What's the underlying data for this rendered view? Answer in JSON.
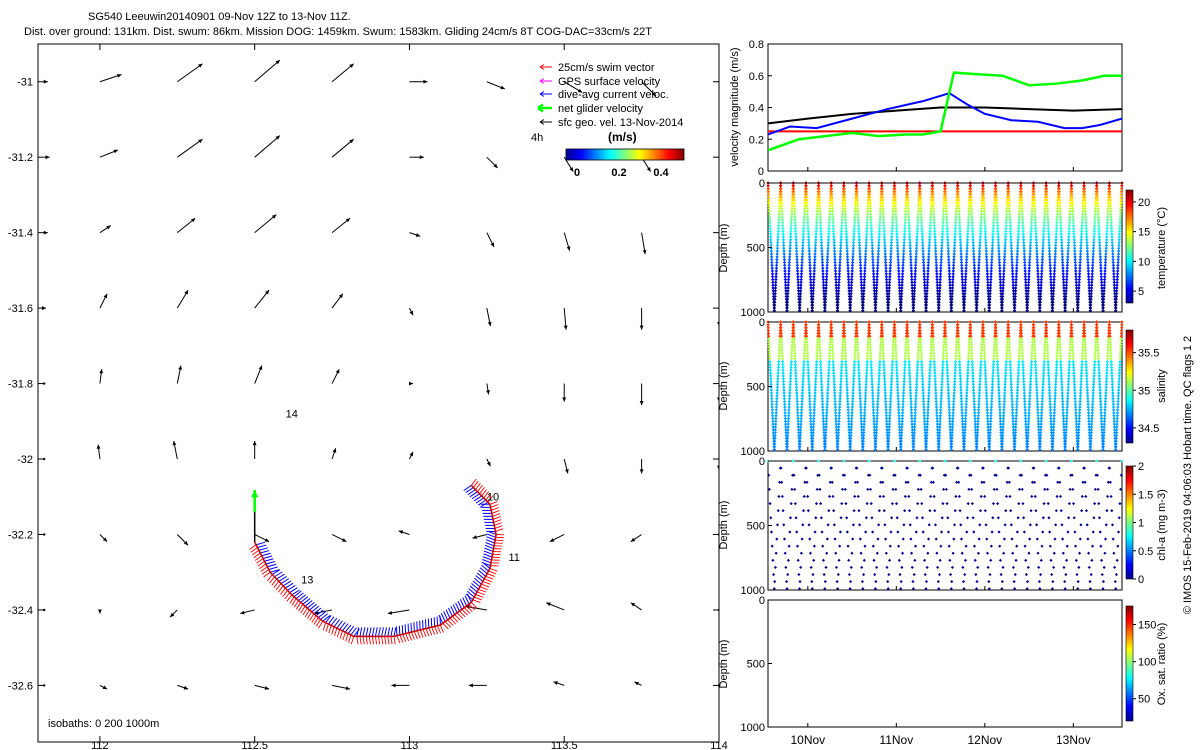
{
  "header": {
    "line1": "SG540 Leeuwin20140901 09-Nov 12Z to 13-Nov 11Z.",
    "line2": "Dist. over ground: 131km. Dist. swum: 86km. Mission DOG: 1459km. Swum: 1583km. Gliding 24cm/s 8T COG-DAC=33cm/s 22T"
  },
  "legend": {
    "items": [
      {
        "label": "25cm/s swim vector",
        "color": "#ff0000"
      },
      {
        "label": "GPS surface velocity",
        "color": "#ff00ff"
      },
      {
        "label": "dive-avg current veloc.",
        "color": "#0000ff"
      },
      {
        "label": "net glider velocity",
        "color": "#00ff00"
      },
      {
        "label": "sfc geo. vel. 13-Nov-2014",
        "color": "#000000"
      }
    ],
    "four_h_label": "4h",
    "colorbar_title": "(m/s)",
    "colorbar_ticks": [
      "0",
      "0.2",
      "0.4"
    ]
  },
  "side_note": "© IMOS 15-Feb-2019 04:06:03 Hobart time. QC flags 1 2",
  "chart_data": [
    {
      "type": "scatter",
      "name": "map",
      "xlim": [
        111.8,
        114.0
      ],
      "ylim": [
        -32.75,
        -30.9
      ],
      "xticks": [
        112,
        112.5,
        113,
        113.5,
        114
      ],
      "xtick_labels": [
        "112",
        "112.5",
        "113",
        "113.5",
        "114"
      ],
      "yticks": [
        -31,
        -31.2,
        -31.4,
        -31.6,
        -31.8,
        -32,
        -32.2,
        -32.4,
        -32.6
      ],
      "ytick_labels": [
        "-31",
        "-31.2",
        "-31.4",
        "-31.6",
        "-31.8",
        "-32",
        "-32.2",
        "-32.4",
        "-32.6"
      ],
      "isobath_label": "isobaths: 0   200   1000m",
      "track": [
        [
          112.5,
          -32.22
        ],
        [
          112.55,
          -32.3
        ],
        [
          112.62,
          -32.36
        ],
        [
          112.72,
          -32.43
        ],
        [
          112.82,
          -32.47
        ],
        [
          112.95,
          -32.47
        ],
        [
          113.1,
          -32.44
        ],
        [
          113.2,
          -32.38
        ],
        [
          113.26,
          -32.29
        ],
        [
          113.28,
          -32.2
        ],
        [
          113.26,
          -32.12
        ],
        [
          113.2,
          -32.07
        ]
      ],
      "day_labels": [
        {
          "text": "10",
          "lon": 113.25,
          "lat": -32.11
        },
        {
          "text": "11",
          "lon": 113.32,
          "lat": -32.27
        },
        {
          "text": "13",
          "lon": 112.65,
          "lat": -32.33
        },
        {
          "text": "14",
          "lon": 112.6,
          "lat": -31.89
        }
      ],
      "net_velocity_origin": [
        112.5,
        -32.22
      ],
      "net_velocity_direction": "north",
      "vector_grid": {
        "lons": [
          111.82,
          112.0,
          112.25,
          112.5,
          112.75,
          113.0,
          113.25,
          113.5,
          113.75,
          114.0
        ],
        "lats": [
          -31.0,
          -31.2,
          -31.4,
          -31.6,
          -31.8,
          -32.0,
          -32.2,
          -32.4,
          -32.6
        ],
        "units": "m/s",
        "u": [
          [
            0.02,
            0.12,
            0.14,
            0.14,
            0.12,
            0.1,
            0.1,
            0.1,
            0.08,
            0.06
          ],
          [
            0.03,
            0.1,
            0.14,
            0.14,
            0.12,
            0.08,
            0.06,
            0.05,
            0.05,
            0.04
          ],
          [
            0.02,
            0.06,
            0.1,
            0.12,
            0.1,
            0.06,
            0.04,
            0.03,
            0.02,
            0.01
          ],
          [
            0.01,
            0.04,
            0.06,
            0.08,
            0.06,
            0.02,
            0.02,
            0.01,
            0.0,
            0.0
          ],
          [
            0.0,
            0.01,
            0.02,
            0.04,
            0.04,
            0.02,
            0.01,
            0.0,
            0.0,
            0.0
          ],
          [
            0.0,
            -0.01,
            -0.02,
            0.0,
            0.02,
            0.02,
            0.02,
            0.02,
            0.0,
            0.0
          ],
          [
            0.0,
            0.04,
            0.06,
            0.08,
            0.08,
            -0.06,
            -0.08,
            -0.08,
            -0.06,
            0.0
          ],
          [
            0.0,
            0.0,
            -0.04,
            -0.08,
            -0.1,
            -0.12,
            -0.12,
            -0.1,
            -0.06,
            0.0
          ],
          [
            0.0,
            0.04,
            0.06,
            0.08,
            0.1,
            -0.1,
            -0.1,
            -0.06,
            -0.04,
            0.0
          ]
        ],
        "v": [
          [
            0.0,
            0.04,
            0.1,
            0.12,
            0.1,
            0.0,
            -0.04,
            -0.06,
            -0.08,
            -0.06
          ],
          [
            0.0,
            0.04,
            0.1,
            0.12,
            0.1,
            0.0,
            -0.06,
            -0.08,
            -0.08,
            -0.06
          ],
          [
            0.0,
            0.04,
            0.08,
            0.1,
            0.08,
            -0.02,
            -0.08,
            -0.1,
            -0.12,
            -0.1
          ],
          [
            0.0,
            0.08,
            0.1,
            0.1,
            0.08,
            -0.04,
            -0.1,
            -0.12,
            -0.12,
            -0.1
          ],
          [
            0.0,
            0.08,
            0.1,
            0.1,
            0.08,
            0.0,
            -0.06,
            -0.1,
            -0.12,
            -0.1
          ],
          [
            0.0,
            0.08,
            0.1,
            0.1,
            0.06,
            0.04,
            -0.04,
            -0.08,
            -0.08,
            -0.06
          ],
          [
            0.0,
            -0.04,
            -0.06,
            -0.04,
            -0.04,
            0.02,
            -0.02,
            -0.04,
            -0.04,
            0.0
          ],
          [
            0.0,
            -0.02,
            -0.04,
            -0.02,
            -0.02,
            -0.02,
            0.02,
            0.04,
            0.04,
            0.0
          ],
          [
            0.0,
            -0.02,
            -0.02,
            -0.02,
            -0.02,
            0.0,
            0.0,
            0.02,
            0.02,
            0.0
          ]
        ]
      }
    },
    {
      "type": "line",
      "name": "velocity",
      "ylabel": "velocity magnitude (m/s)",
      "ylim": [
        0,
        0.8
      ],
      "yticks": [
        0,
        0.2,
        0.4,
        0.6,
        0.8
      ],
      "ytick_labels": [
        "0",
        "0.2",
        "0.4",
        "0.6",
        "0.8"
      ],
      "xlim": [
        9.55,
        13.55
      ],
      "series": [
        {
          "color": "#ff0000",
          "x": [
            9.55,
            13.55
          ],
          "y": [
            0.25,
            0.25
          ]
        },
        {
          "color": "#000000",
          "x": [
            9.55,
            10.0,
            10.5,
            11.0,
            11.5,
            12.0,
            12.5,
            13.0,
            13.55
          ],
          "y": [
            0.3,
            0.33,
            0.36,
            0.38,
            0.4,
            0.4,
            0.39,
            0.38,
            0.39
          ]
        },
        {
          "color": "#0000ff",
          "x": [
            9.55,
            9.8,
            10.1,
            10.5,
            10.9,
            11.3,
            11.6,
            11.8,
            12.0,
            12.3,
            12.6,
            12.9,
            13.1,
            13.3,
            13.55
          ],
          "y": [
            0.23,
            0.28,
            0.27,
            0.33,
            0.39,
            0.44,
            0.49,
            0.42,
            0.36,
            0.32,
            0.31,
            0.27,
            0.27,
            0.29,
            0.33
          ]
        },
        {
          "color": "#00ff00",
          "x": [
            9.55,
            9.7,
            9.9,
            10.2,
            10.5,
            10.8,
            11.1,
            11.3,
            11.5,
            11.65,
            11.9,
            12.2,
            12.5,
            12.8,
            13.1,
            13.35,
            13.55
          ],
          "y": [
            0.13,
            0.16,
            0.2,
            0.22,
            0.24,
            0.22,
            0.23,
            0.23,
            0.25,
            0.62,
            0.61,
            0.6,
            0.54,
            0.55,
            0.57,
            0.6,
            0.6
          ]
        }
      ]
    },
    {
      "type": "scatter",
      "name": "temperature",
      "ylabel": "Depth (m)",
      "ylim": [
        1000,
        0
      ],
      "yticks": [
        0,
        500,
        1000
      ],
      "colorbar": {
        "label": "temperature (°C)",
        "ticks": [
          "5",
          "10",
          "15",
          "20"
        ],
        "range": [
          3,
          22
        ]
      }
    },
    {
      "type": "scatter",
      "name": "salinity",
      "ylabel": "Depth (m)",
      "ylim": [
        1000,
        0
      ],
      "yticks": [
        0,
        500,
        1000
      ],
      "colorbar": {
        "label": "salinity",
        "ticks": [
          "34.5",
          "35",
          "35.5"
        ],
        "range": [
          34.3,
          35.8
        ]
      }
    },
    {
      "type": "scatter",
      "name": "chl-a",
      "ylabel": "Depth (m)",
      "ylim": [
        1000,
        0
      ],
      "yticks": [
        0,
        500,
        1000
      ],
      "colorbar": {
        "label": "chl-a (mg m-3)",
        "ticks": [
          "0",
          "0.5",
          "1",
          "1.5",
          "2"
        ],
        "range": [
          0,
          2
        ]
      }
    },
    {
      "type": "scatter",
      "name": "oxygen",
      "ylabel": "Depth (m)",
      "ylim": [
        1000,
        0
      ],
      "yticks": [
        0,
        500,
        1000
      ],
      "xticks": [
        10,
        11,
        12,
        13
      ],
      "xtick_labels": [
        "10Nov",
        "11Nov",
        "12Nov",
        "13Nov"
      ],
      "colorbar": {
        "label": "Ox. sat. ratio (%)",
        "ticks": [
          "50",
          "100",
          "150"
        ],
        "range": [
          20,
          175
        ]
      }
    }
  ]
}
